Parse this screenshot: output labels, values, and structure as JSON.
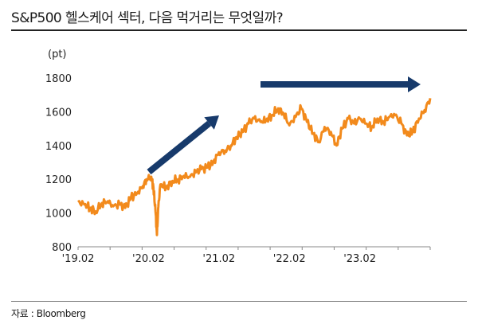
{
  "title": "S&P500 헬스케어 섹터, 다음 먹거리는 무엇일까?",
  "source": "자료 : Bloomberg",
  "chart_data": {
    "type": "line",
    "unit_label": "(pt)",
    "ylim": [
      800,
      1800
    ],
    "yticks": [
      800,
      1000,
      1200,
      1400,
      1600,
      1800
    ],
    "xtick_labels": [
      "'19.02",
      "'20.02",
      "'21.02",
      "'22.02",
      "'23.02"
    ],
    "xtick_positions": [
      2019.08,
      2020.08,
      2021.08,
      2022.08,
      2023.08
    ],
    "xlim": [
      2019.08,
      2024.08
    ],
    "grid": false,
    "series": [
      {
        "color": "#f28a1c",
        "x": [
          2019.08,
          2019.17,
          2019.25,
          2019.33,
          2019.42,
          2019.5,
          2019.58,
          2019.67,
          2019.75,
          2019.83,
          2019.92,
          2020.0,
          2020.05,
          2020.12,
          2020.15,
          2020.18,
          2020.2,
          2020.22,
          2020.25,
          2020.33,
          2020.42,
          2020.5,
          2020.58,
          2020.67,
          2020.75,
          2020.83,
          2020.92,
          2021.0,
          2021.08,
          2021.17,
          2021.25,
          2021.33,
          2021.42,
          2021.5,
          2021.58,
          2021.67,
          2021.75,
          2021.83,
          2021.92,
          2022.0,
          2022.08,
          2022.17,
          2022.25,
          2022.33,
          2022.42,
          2022.5,
          2022.58,
          2022.67,
          2022.75,
          2022.83,
          2022.92,
          2023.0,
          2023.08,
          2023.17,
          2023.25,
          2023.33,
          2023.42,
          2023.5,
          2023.58,
          2023.67,
          2023.75,
          2023.83,
          2023.92,
          2024.0,
          2024.08
        ],
        "y": [
          1065,
          1050,
          1030,
          1010,
          1060,
          1070,
          1040,
          1050,
          1030,
          1090,
          1120,
          1160,
          1200,
          1215,
          1150,
          1010,
          870,
          1040,
          1170,
          1150,
          1190,
          1200,
          1220,
          1215,
          1240,
          1260,
          1270,
          1300,
          1360,
          1370,
          1400,
          1450,
          1480,
          1530,
          1560,
          1540,
          1550,
          1580,
          1620,
          1590,
          1520,
          1570,
          1620,
          1540,
          1470,
          1420,
          1510,
          1480,
          1400,
          1500,
          1560,
          1530,
          1560,
          1530,
          1510,
          1560,
          1540,
          1570,
          1580,
          1530,
          1460,
          1480,
          1560,
          1610,
          1680
        ]
      }
    ],
    "annotations": [
      {
        "type": "arrow",
        "color": "#173a6b",
        "description": "upward trend 2020-2021"
      },
      {
        "type": "arrow",
        "color": "#173a6b",
        "description": "flat trend 2021-2023"
      }
    ]
  }
}
